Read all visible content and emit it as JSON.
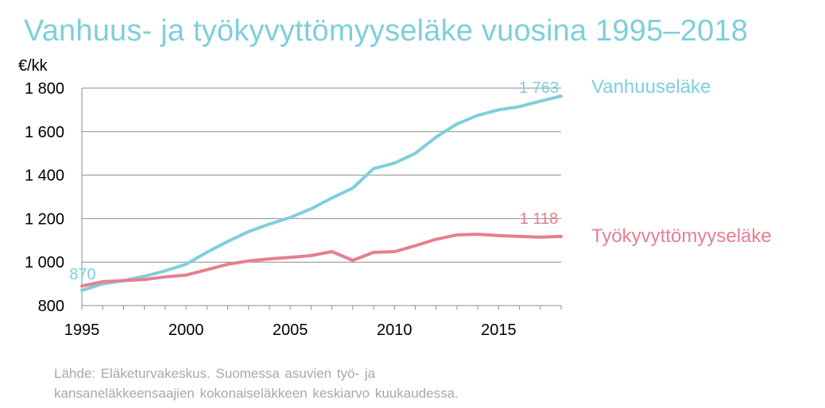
{
  "title": "Vanhuus- ja työkyvyttömyyseläke vuosina 1995–2018",
  "source": {
    "line1": "Lähde: Eläketurvakeskus. Suomessa asuvien työ- ja",
    "line2": "kansaneläkkeensaajien kokonaiseläkkeen keskiarvo kuukaudessa."
  },
  "chart_data": {
    "type": "line",
    "title": "Vanhuus- ja työkyvyttömyyseläke vuosina 1995–2018",
    "ylabel": "€/kk",
    "xlabel": "",
    "xlim": [
      1995,
      2018
    ],
    "ylim": [
      800,
      1800
    ],
    "x_ticks": [
      1995,
      2000,
      2005,
      2010,
      2015
    ],
    "x_tick_labels": [
      "1995",
      "2000",
      "2005",
      "2010",
      "2015"
    ],
    "y_ticks": [
      800,
      1000,
      1200,
      1400,
      1600,
      1800
    ],
    "y_tick_labels": [
      "800",
      "1 000",
      "1 200",
      "1 400",
      "1 600",
      "1 800"
    ],
    "grid": "horizontal",
    "legend": "inline labels at line ends (right)",
    "x": [
      1995,
      1996,
      1997,
      1998,
      1999,
      2000,
      2001,
      2002,
      2003,
      2004,
      2005,
      2006,
      2007,
      2008,
      2009,
      2010,
      2011,
      2012,
      2013,
      2014,
      2015,
      2016,
      2017,
      2018
    ],
    "series": [
      {
        "name": "Vanhuuseläke",
        "color": "#7ecfdb",
        "values": [
          870,
          900,
          915,
          935,
          960,
          990,
          1045,
          1095,
          1140,
          1175,
          1205,
          1245,
          1295,
          1340,
          1430,
          1455,
          1500,
          1575,
          1635,
          1675,
          1700,
          1715,
          1740,
          1763
        ],
        "start_label": "870",
        "end_label": "1 763"
      },
      {
        "name": "Työkyvyttömyyseläke",
        "color": "#e57f90",
        "values": [
          890,
          910,
          915,
          920,
          932,
          940,
          965,
          990,
          1005,
          1015,
          1022,
          1030,
          1048,
          1008,
          1045,
          1048,
          1075,
          1105,
          1125,
          1128,
          1122,
          1118,
          1115,
          1118
        ],
        "end_label": "1 118"
      }
    ]
  }
}
